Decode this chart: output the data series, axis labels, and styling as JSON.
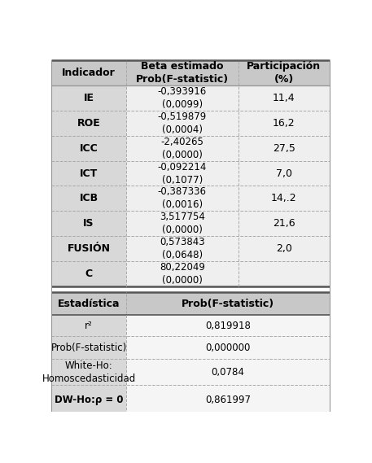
{
  "header1": [
    "Indicador",
    "Beta estimado\nProb(F-statistic)",
    "Participación\n(%)"
  ],
  "rows": [
    [
      "IE",
      "-0,393916\n(0,0099)",
      "11,4"
    ],
    [
      "ROE",
      "-0,519879\n(0,0004)",
      "16,2"
    ],
    [
      "ICC",
      "-2,40265\n(0,0000)",
      "27,5"
    ],
    [
      "ICT",
      "-0,092214\n(0,1077)",
      "7,0"
    ],
    [
      "ICB",
      "-0,387336\n(0,0016)",
      "14,.2"
    ],
    [
      "IS",
      "3,517754\n(0,0000)",
      "21,6"
    ],
    [
      "FUSIÓN",
      "0,573843\n(0,0648)",
      "2,0"
    ],
    [
      "C",
      "80,22049\n(0,0000)",
      ""
    ]
  ],
  "header2": [
    "Estadística",
    "Prob(F-statistic)"
  ],
  "rows2": [
    [
      "r²",
      "0,819918",
      false
    ],
    [
      "Prob(F-statistic)",
      "0,000000",
      false
    ],
    [
      "White-Ho:\nHomoscedasticidad",
      "0,0784",
      false
    ],
    [
      "DW-Ho:ρ = 0",
      "0,861997",
      true
    ]
  ],
  "header_bg": "#c8c8c8",
  "col1_bg": "#d8d8d8",
  "col23_bg": "#efefef",
  "col1_bg2": "#d8d8d8",
  "col2_bg2": "#f5f5f5",
  "thick_line": "#555555",
  "thin_line": "#999999",
  "dash_line": "#aaaaaa"
}
